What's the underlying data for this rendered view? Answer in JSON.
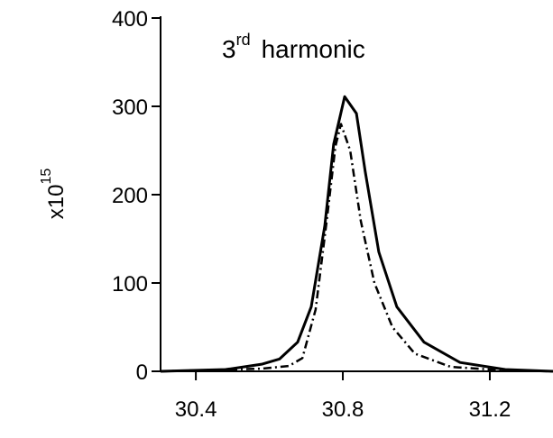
{
  "chart_data": {
    "type": "line",
    "title": {
      "text": "3",
      "superscript": "rd",
      "suffix": "harmonic"
    },
    "ylabel": {
      "text": "x10",
      "superscript": "15"
    },
    "xlim": [
      30.304,
      31.372
    ],
    "ylim": [
      0,
      400
    ],
    "xticks": [
      30.4,
      30.8,
      31.2
    ],
    "yticks": [
      0,
      100,
      200,
      300,
      400
    ],
    "series": [
      {
        "color": "#000000",
        "style": "solid",
        "x": [
          30.304,
          30.481,
          30.579,
          30.628,
          30.677,
          30.714,
          30.751,
          30.775,
          30.805,
          30.837,
          30.861,
          30.898,
          30.947,
          31.021,
          31.119,
          31.242,
          31.372
        ],
        "values": [
          0,
          2,
          8,
          14,
          33,
          73,
          165,
          257,
          311,
          292,
          226,
          135,
          73,
          33,
          10,
          2,
          0
        ]
      },
      {
        "color": "#000000",
        "style": "dashdot",
        "x": [
          30.304,
          30.579,
          30.653,
          30.69,
          30.726,
          30.756,
          30.78,
          30.795,
          30.82,
          30.849,
          30.886,
          30.935,
          30.996,
          31.094,
          31.242,
          31.372
        ],
        "values": [
          0,
          3,
          6,
          15,
          70,
          170,
          255,
          280,
          250,
          170,
          100,
          50,
          20,
          5,
          1,
          0
        ]
      }
    ]
  }
}
